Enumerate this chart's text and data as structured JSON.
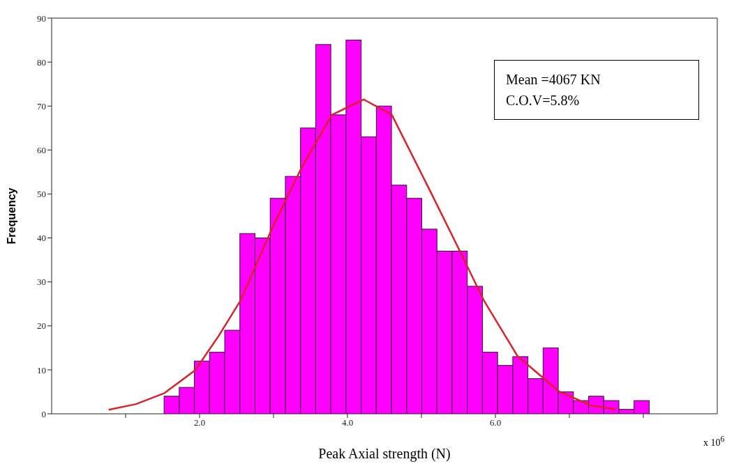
{
  "chart_data": {
    "type": "histogram",
    "xlabel": "Peak Axial strength (N)",
    "ylabel": "Frequency",
    "bins": [
      1.52,
      1.725,
      1.93,
      2.135,
      2.34,
      2.545,
      2.75,
      2.955,
      3.16,
      3.365,
      3.57,
      3.775,
      3.98,
      4.185,
      4.39,
      4.595,
      4.8,
      5.005,
      5.21,
      5.415,
      5.62,
      5.825,
      6.03,
      6.235,
      6.44,
      6.645,
      6.85,
      7.055,
      7.26,
      7.465,
      7.67,
      7.875,
      8.08
    ],
    "values": [
      4,
      6,
      12,
      14,
      19,
      41,
      40,
      49,
      54,
      65,
      84,
      68,
      85,
      63,
      70,
      52,
      49,
      42,
      37,
      37,
      29,
      14,
      11,
      13,
      8,
      15,
      5,
      3,
      4,
      3,
      1,
      3
    ],
    "color": "#ff00ff",
    "series": [
      {
        "type": "line",
        "color": "#d8232a",
        "x": [
          0.77,
          1.14,
          1.525,
          1.94,
          2.25,
          2.556,
          2.97,
          3.38,
          3.79,
          4.22,
          4.6,
          5.12,
          5.52,
          5.84,
          6.3,
          6.86,
          7.29,
          7.63
        ],
        "values": [
          0.9,
          2.2,
          4.7,
          9.9,
          17.5,
          25.8,
          41.8,
          56,
          68,
          71.5,
          68,
          50.6,
          37,
          25.9,
          13.1,
          5.1,
          1.9,
          1
        ]
      }
    ],
    "xlim": [
      0,
      9
    ],
    "xticks": [
      {
        "value": 1,
        "label": null
      },
      {
        "value": 2,
        "label": "2.0"
      },
      {
        "value": 3,
        "label": null
      },
      {
        "value": 4,
        "label": "4.0"
      },
      {
        "value": 5,
        "label": null
      },
      {
        "value": 6,
        "label": "6.0"
      },
      {
        "value": 7,
        "label": null
      },
      {
        "value": 8,
        "label": null
      }
    ],
    "ylim": [
      0,
      90
    ],
    "yticks": [
      0,
      10,
      20,
      30,
      40,
      50,
      60,
      70,
      80,
      90
    ],
    "grid": false,
    "legend": false,
    "annotations": [
      "Mean =4067 KN",
      "C.O.V=5.8%",
      "x 10$^{6}$"
    ]
  }
}
